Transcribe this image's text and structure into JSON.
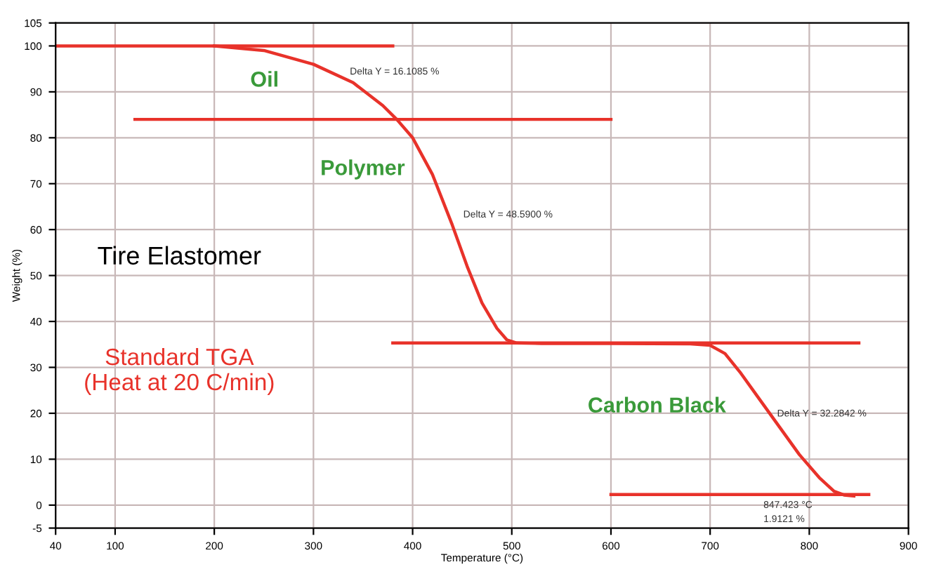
{
  "chart_data": {
    "type": "line",
    "xlabel": "Temperature (°C)",
    "ylabel": "Weight (%)",
    "xlim": [
      40,
      900
    ],
    "ylim": [
      -5,
      105
    ],
    "xticks": [
      40,
      100,
      200,
      300,
      400,
      500,
      600,
      700,
      800,
      900
    ],
    "yticks": [
      -5,
      0,
      10,
      20,
      30,
      40,
      50,
      60,
      70,
      80,
      90,
      100,
      105
    ],
    "grid": true,
    "series": [
      {
        "color": "#e8322a",
        "x": [
          200,
          250,
          300,
          340,
          370,
          384,
          400,
          420,
          440,
          455,
          470,
          485,
          495,
          505,
          530,
          600,
          680,
          700,
          715,
          730,
          750,
          770,
          790,
          810,
          825,
          835,
          845
        ],
        "values": [
          100,
          99,
          96,
          92,
          87,
          84,
          80,
          72,
          61,
          52,
          44,
          38.5,
          36,
          35.3,
          35.2,
          35.2,
          35.1,
          34.8,
          33,
          29,
          23,
          17,
          11,
          6,
          3,
          2.2,
          2
        ]
      },
      {
        "color": "#e8322a",
        "x": [
          40,
          380
        ],
        "values": [
          100,
          100
        ]
      },
      {
        "color": "#e8322a",
        "x": [
          120,
          600
        ],
        "values": [
          84,
          84
        ]
      },
      {
        "color": "#e8322a",
        "x": [
          380,
          850
        ],
        "values": [
          35.3,
          35.3
        ]
      },
      {
        "color": "#e8322a",
        "x": [
          600,
          860
        ],
        "values": [
          2.3,
          2.3
        ]
      }
    ],
    "annotations": [
      "Oil",
      "Delta Y = 16.1085 %",
      "Polymer",
      "Delta Y = 48.5900 %",
      "Tire Elastomer",
      "Standard TGA\n(Heat at 20 C/min)",
      "Carbon Black",
      "Delta Y = 32.2842 %",
      "847.423 °C",
      "1.9121 %"
    ]
  }
}
